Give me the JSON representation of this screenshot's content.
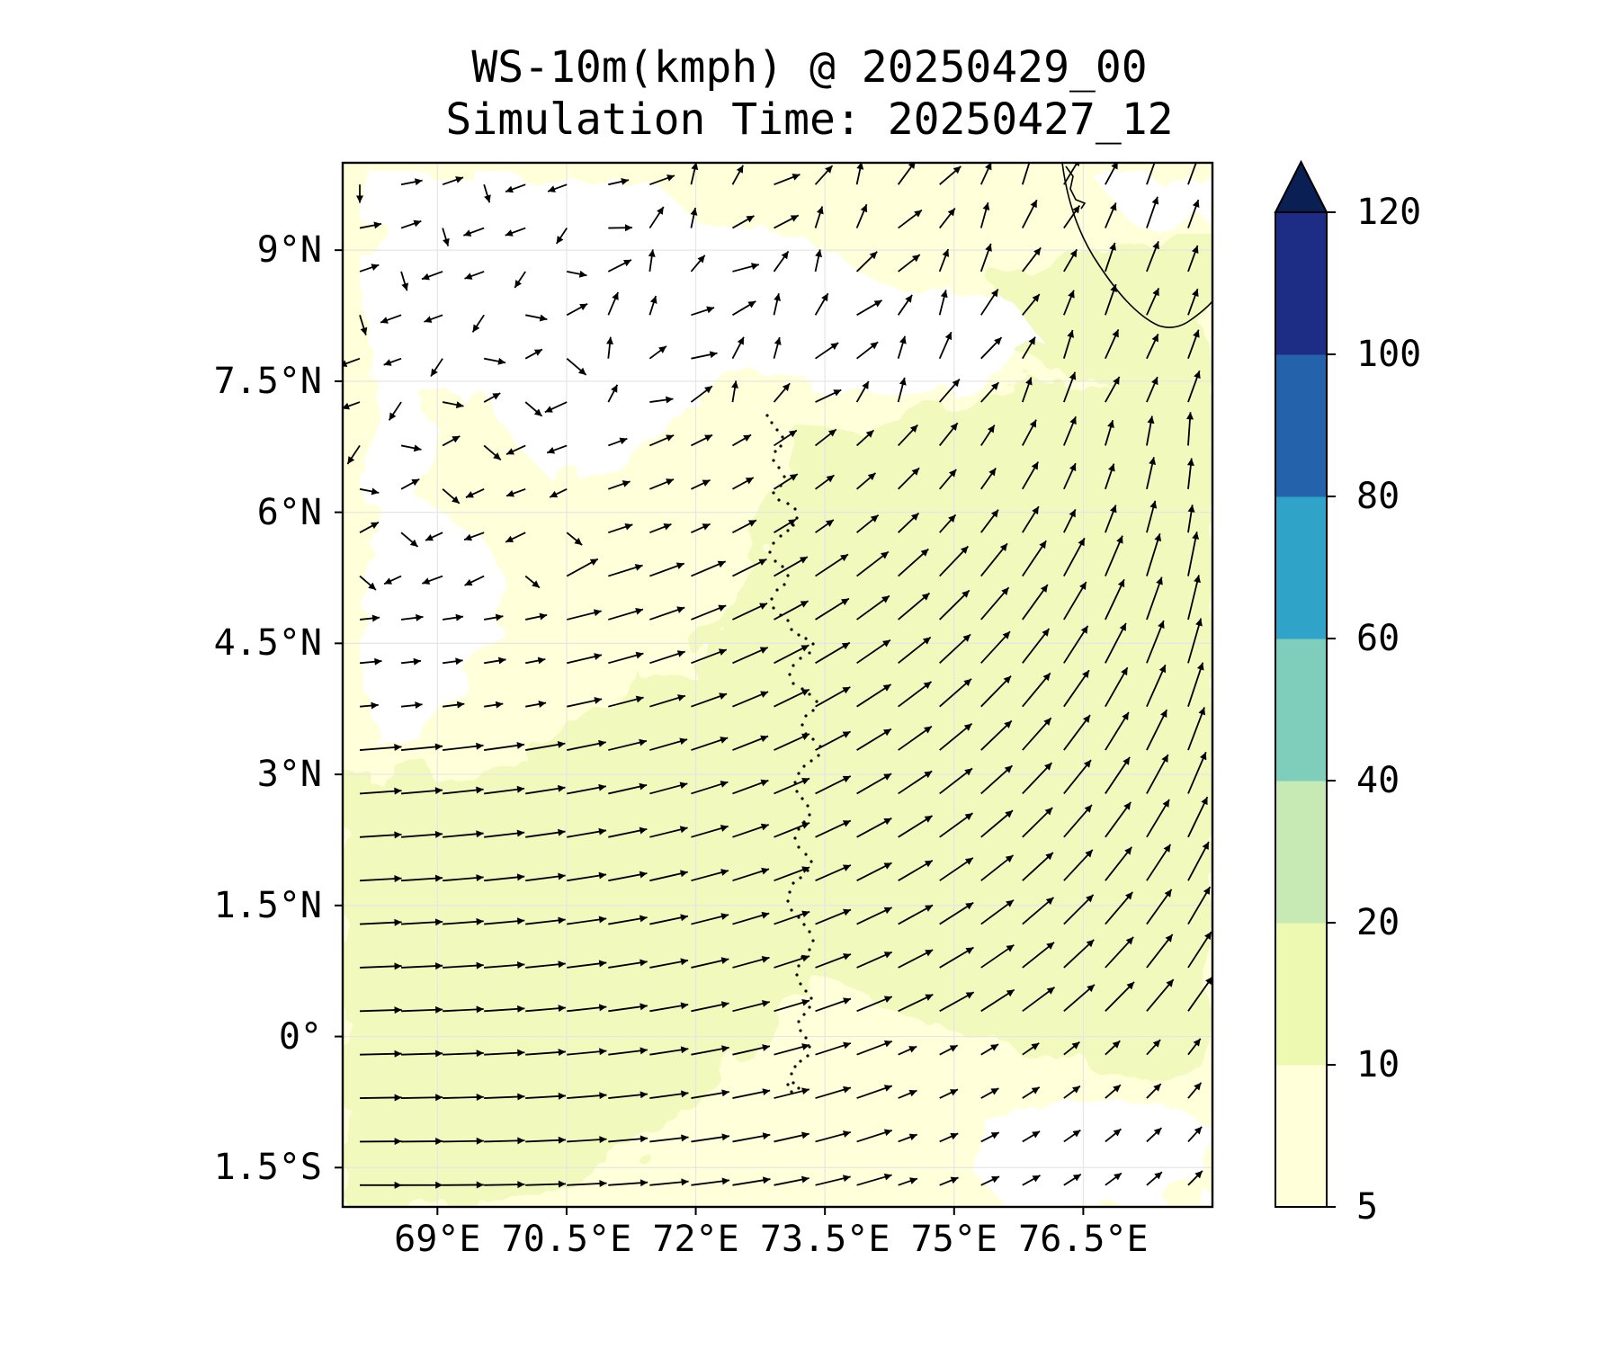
{
  "title": {
    "line1": "WS-10m(kmph) @ 20250429_00",
    "line2": "Simulation Time: 20250427_12"
  },
  "map": {
    "variable": "10 m wind speed",
    "unit": "kmph",
    "lon_range": [
      67.9,
      78.0
    ],
    "lat_range": [
      -1.95,
      10.0
    ],
    "lat_ticks": [
      {
        "value": 9,
        "label": "9°N"
      },
      {
        "value": 7.5,
        "label": "7.5°N"
      },
      {
        "value": 6,
        "label": "6°N"
      },
      {
        "value": 4.5,
        "label": "4.5°N"
      },
      {
        "value": 3,
        "label": "3°N"
      },
      {
        "value": 1.5,
        "label": "1.5°N"
      },
      {
        "value": 0,
        "label": "0°"
      },
      {
        "value": -1.5,
        "label": "1.5°S"
      }
    ],
    "lon_ticks": [
      {
        "value": 69,
        "label": "69°E"
      },
      {
        "value": 70.5,
        "label": "70.5°E"
      },
      {
        "value": 72,
        "label": "72°E"
      },
      {
        "value": 73.5,
        "label": "73.5°E"
      },
      {
        "value": 75,
        "label": "75°E"
      },
      {
        "value": 76.5,
        "label": "76.5°E"
      }
    ],
    "grid": true,
    "colors": {
      "below_min": "#ffffff",
      "band_5_10": "#ffffd9",
      "band_10_20": "#f2f9bd",
      "frame": "#000000",
      "arrow": "#000000"
    }
  },
  "colorbar": {
    "boundaries": [
      5,
      10,
      20,
      40,
      60,
      80,
      100,
      120
    ],
    "colors": [
      "#ffffd9",
      "#edf8b1",
      "#c7e9b4",
      "#7fcdbb",
      "#2fa3c8",
      "#2463ab",
      "#1d2c84"
    ],
    "extend_color": "#0a1f54",
    "extend": "max",
    "tick_labels": [
      "5",
      "10",
      "20",
      "40",
      "60",
      "80",
      "100",
      "120"
    ]
  }
}
